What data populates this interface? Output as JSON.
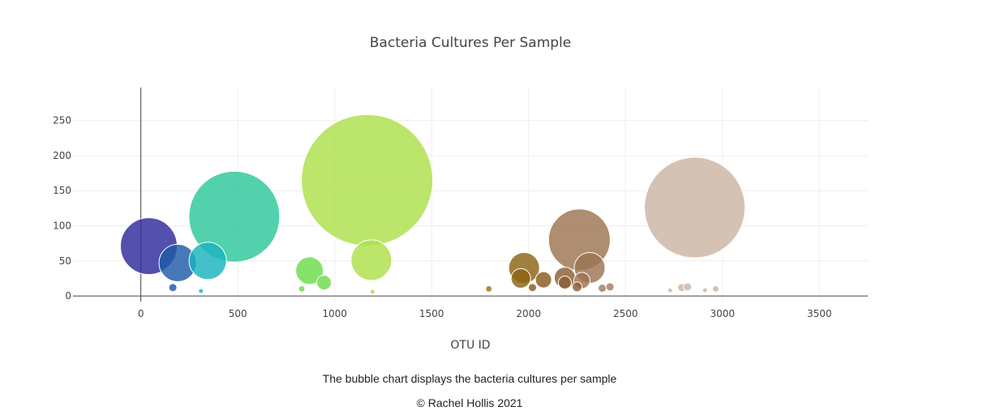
{
  "chart_data": {
    "type": "scatter",
    "title": "Bacteria Cultures Per Sample",
    "xlabel": "OTU ID",
    "ylabel": "",
    "xlim": [
      -350,
      3750
    ],
    "ylim": [
      -8,
      297
    ],
    "xticks": [
      0,
      500,
      1000,
      1500,
      2000,
      2500,
      3000,
      3500
    ],
    "yticks": [
      0,
      50,
      100,
      150,
      200,
      250
    ],
    "grid": true,
    "points": [
      {
        "x": 41,
        "y": 71,
        "r": 35,
        "color": "#2d2a9c"
      },
      {
        "x": 190,
        "y": 47,
        "r": 23,
        "color": "#1f5aa8"
      },
      {
        "x": 165,
        "y": 12,
        "r": 5,
        "color": "#1f5aa8"
      },
      {
        "x": 345,
        "y": 50,
        "r": 23,
        "color": "#1ab3bf"
      },
      {
        "x": 310,
        "y": 7,
        "r": 3,
        "color": "#1ab3bf"
      },
      {
        "x": 482,
        "y": 113,
        "r": 56,
        "color": "#2cc79a"
      },
      {
        "x": 870,
        "y": 36,
        "r": 17,
        "color": "#6ddc4c"
      },
      {
        "x": 945,
        "y": 19,
        "r": 9,
        "color": "#6ddc4c"
      },
      {
        "x": 830,
        "y": 10,
        "r": 4,
        "color": "#6ddc4c"
      },
      {
        "x": 1167,
        "y": 165,
        "r": 81,
        "color": "#addf4a"
      },
      {
        "x": 1189,
        "y": 51,
        "r": 25,
        "color": "#addf4a"
      },
      {
        "x": 1195,
        "y": 6,
        "r": 3,
        "color": "#addf4a"
      },
      {
        "x": 1795,
        "y": 10,
        "r": 4,
        "color": "#9a7a1e"
      },
      {
        "x": 1977,
        "y": 40,
        "r": 19,
        "color": "#8c6414"
      },
      {
        "x": 1960,
        "y": 25,
        "r": 12,
        "color": "#8c6414"
      },
      {
        "x": 2077,
        "y": 23,
        "r": 10,
        "color": "#8a5a1f"
      },
      {
        "x": 2020,
        "y": 12,
        "r": 5,
        "color": "#8a5a1f"
      },
      {
        "x": 2187,
        "y": 26,
        "r": 13,
        "color": "#8b5e34"
      },
      {
        "x": 2187,
        "y": 19,
        "r": 8,
        "color": "#8b5e34"
      },
      {
        "x": 2262,
        "y": 80,
        "r": 38,
        "color": "#9c7450"
      },
      {
        "x": 2315,
        "y": 40,
        "r": 19,
        "color": "#9c7450"
      },
      {
        "x": 2275,
        "y": 22,
        "r": 10,
        "color": "#9c7450"
      },
      {
        "x": 2250,
        "y": 13,
        "r": 6,
        "color": "#8b5e34"
      },
      {
        "x": 2380,
        "y": 11,
        "r": 5,
        "color": "#a07d63"
      },
      {
        "x": 2420,
        "y": 13,
        "r": 5,
        "color": "#a07d63"
      },
      {
        "x": 2857,
        "y": 126,
        "r": 62,
        "color": "#cbb5a5"
      },
      {
        "x": 2730,
        "y": 8,
        "r": 3,
        "color": "#cbb5a5"
      },
      {
        "x": 2790,
        "y": 12,
        "r": 5,
        "color": "#cbb5a5"
      },
      {
        "x": 2820,
        "y": 13,
        "r": 5,
        "color": "#cbb5a5"
      },
      {
        "x": 2910,
        "y": 8,
        "r": 3,
        "color": "#cbb5a5"
      },
      {
        "x": 2965,
        "y": 10,
        "r": 4,
        "color": "#cbb5a5"
      }
    ]
  },
  "caption": "The bubble chart displays the bacteria cultures per sample",
  "copyright": "© Rachel Hollis 2021"
}
